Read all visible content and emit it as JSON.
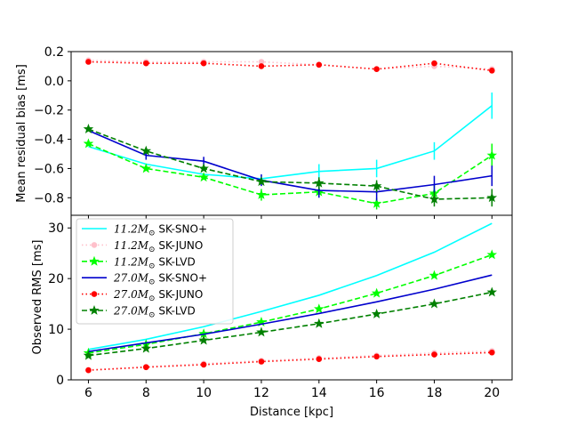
{
  "chart_data": [
    {
      "id": "top",
      "type": "line",
      "title": "",
      "xlabel": "",
      "ylabel": "Mean residual bias [ms]",
      "xlim": [
        5.4,
        20.7
      ],
      "ylim": [
        -0.92,
        0.2
      ],
      "xticks": [
        6,
        8,
        10,
        12,
        14,
        16,
        18,
        20
      ],
      "yticks": [
        -0.8,
        -0.6,
        -0.4,
        -0.2,
        0.0,
        0.2
      ],
      "ytick_labels": [
        "−0.8",
        "−0.6",
        "−0.4",
        "−0.2",
        "0.0",
        "0.2"
      ],
      "x": [
        6,
        8,
        10,
        12,
        14,
        16,
        18,
        20
      ],
      "series": [
        {
          "name": "11.2 SK-SNO+",
          "color": "#00ffff",
          "linestyle": "solid",
          "marker": "none",
          "values": [
            -0.45,
            -0.57,
            -0.64,
            -0.67,
            -0.62,
            -0.6,
            -0.48,
            -0.17
          ],
          "errors": [
            0,
            0,
            0,
            0,
            0.05,
            0.06,
            0.06,
            0.09
          ]
        },
        {
          "name": "11.2 SK-JUNO",
          "color": "#ffc0cb",
          "linestyle": "dotted",
          "marker": "circle",
          "values": [
            0.14,
            0.13,
            0.13,
            0.13,
            0.11,
            0.08,
            0.1,
            0.08
          ],
          "errors": []
        },
        {
          "name": "11.2 SK-LVD",
          "color": "#00ff00",
          "linestyle": "dashed",
          "marker": "star",
          "values": [
            -0.43,
            -0.6,
            -0.66,
            -0.78,
            -0.76,
            -0.84,
            -0.77,
            -0.51
          ],
          "errors": [
            0,
            0,
            0,
            0.04,
            0,
            0.04,
            0.06,
            0.08
          ]
        },
        {
          "name": "27.0 SK-SNO+",
          "color": "#0000cd",
          "linestyle": "solid",
          "marker": "none",
          "values": [
            -0.34,
            -0.51,
            -0.55,
            -0.68,
            -0.75,
            -0.76,
            -0.71,
            -0.65
          ],
          "errors": [
            0,
            0.03,
            0.03,
            0.04,
            0.05,
            0.06,
            0.06,
            0.07
          ]
        },
        {
          "name": "27.0 SK-JUNO",
          "color": "#ff0000",
          "linestyle": "dotted",
          "marker": "circle",
          "values": [
            0.13,
            0.12,
            0.12,
            0.1,
            0.11,
            0.08,
            0.12,
            0.07
          ],
          "errors": []
        },
        {
          "name": "27.0 SK-LVD",
          "color": "#008000",
          "linestyle": "dashed",
          "marker": "star",
          "values": [
            -0.33,
            -0.48,
            -0.6,
            -0.69,
            -0.7,
            -0.72,
            -0.81,
            -0.8
          ],
          "errors": [
            0,
            0,
            0,
            0,
            0.04,
            0.04,
            0.05,
            0.06
          ]
        }
      ]
    },
    {
      "id": "bottom",
      "type": "line",
      "title": "",
      "xlabel": "Distance [kpc]",
      "ylabel": "Observed RMS [ms]",
      "xlim": [
        5.4,
        20.7
      ],
      "ylim": [
        0,
        32.5
      ],
      "xticks": [
        6,
        8,
        10,
        12,
        14,
        16,
        18,
        20
      ],
      "yticks": [
        0,
        10,
        20,
        30
      ],
      "ytick_labels": [
        "0",
        "10",
        "20",
        "30"
      ],
      "x": [
        6,
        8,
        10,
        12,
        14,
        16,
        18,
        20
      ],
      "legend_position": "upper-left",
      "series": [
        {
          "name": "11.2 SK-SNO+",
          "color": "#00ffff",
          "linestyle": "solid",
          "marker": "none",
          "values": [
            6.0,
            8.0,
            10.5,
            13.5,
            16.7,
            20.6,
            25.2,
            30.9
          ]
        },
        {
          "name": "11.2 SK-JUNO",
          "color": "#ffc0cb",
          "linestyle": "dotted",
          "marker": "circle",
          "values": [
            2.0,
            2.6,
            3.2,
            3.8,
            4.3,
            4.8,
            5.3,
            5.7
          ]
        },
        {
          "name": "11.2 SK-LVD",
          "color": "#00ff00",
          "linestyle": "dashed",
          "marker": "star",
          "values": [
            5.3,
            7.0,
            9.1,
            11.4,
            14.0,
            17.1,
            20.6,
            24.7
          ]
        },
        {
          "name": "27.0 SK-SNO+",
          "color": "#0000cd",
          "linestyle": "solid",
          "marker": "none",
          "values": [
            5.6,
            7.3,
            9.0,
            11.0,
            13.1,
            15.4,
            17.9,
            20.7
          ]
        },
        {
          "name": "27.0 SK-JUNO",
          "color": "#ff0000",
          "linestyle": "dotted",
          "marker": "circle",
          "values": [
            1.9,
            2.5,
            3.0,
            3.6,
            4.1,
            4.6,
            5.0,
            5.4
          ]
        },
        {
          "name": "27.0 SK-LVD",
          "color": "#008000",
          "linestyle": "dashed",
          "marker": "star",
          "values": [
            4.8,
            6.2,
            7.8,
            9.4,
            11.1,
            13.0,
            15.0,
            17.3
          ]
        }
      ]
    }
  ],
  "legend": {
    "items": [
      {
        "mass": "11.2",
        "label": "SK-SNO+",
        "series_index": 0
      },
      {
        "mass": "11.2",
        "label": "SK-JUNO",
        "series_index": 1
      },
      {
        "mass": "11.2",
        "label": "SK-LVD",
        "series_index": 2
      },
      {
        "mass": "27.0",
        "label": "SK-SNO+",
        "series_index": 3
      },
      {
        "mass": "27.0",
        "label": "SK-JUNO",
        "series_index": 4
      },
      {
        "mass": "27.0",
        "label": "SK-LVD",
        "series_index": 5
      }
    ],
    "mass_symbol": "M",
    "mass_subscript": "⊙"
  }
}
